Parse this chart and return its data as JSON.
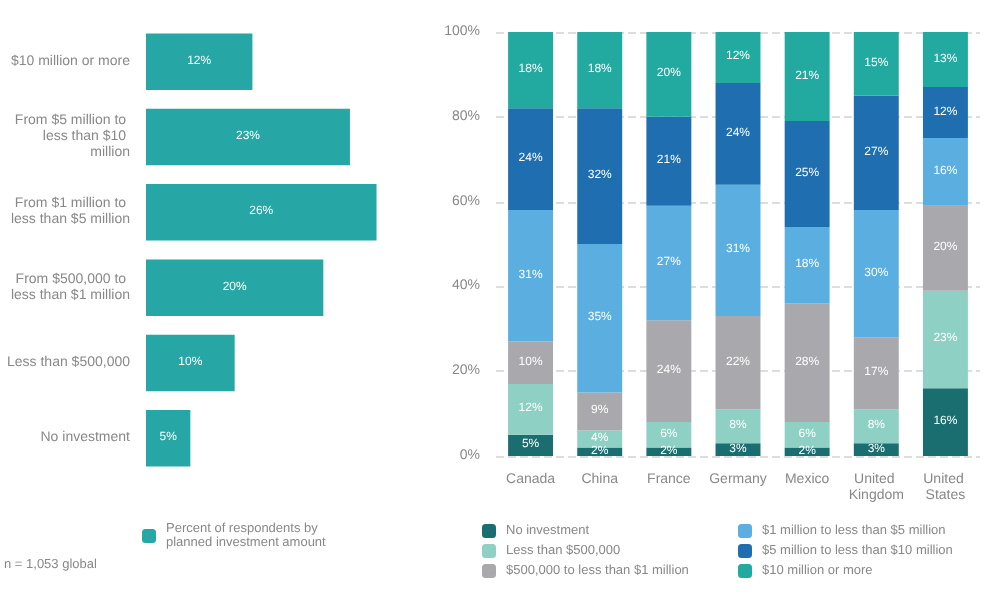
{
  "chart_data": [
    {
      "type": "bar",
      "orientation": "horizontal",
      "categories": [
        "$10 million or more",
        "From $5 million to less than $10 million",
        "From $1 million to less than $5 million",
        "From $500,000 to less than $1 million",
        "Less than $500,000",
        "No investment"
      ],
      "series": [
        {
          "name": "Percent of respondents by planned investment amount",
          "color": "#26a6a4",
          "values": [
            12,
            23,
            26,
            20,
            10,
            5
          ],
          "value_labels": [
            "12%",
            "23%",
            "26%",
            "20%",
            "10%",
            "5%"
          ]
        }
      ],
      "legend": "bottom",
      "annotations": [
        "n = 1,053 global"
      ]
    },
    {
      "type": "bar",
      "stacked": true,
      "categories": [
        "Canada",
        "China",
        "France",
        "Germany",
        "Mexico",
        "United Kingdom",
        "United States"
      ],
      "series": [
        {
          "name": "No investment",
          "color": "#1a6e70",
          "values": [
            5,
            2,
            2,
            3,
            2,
            3,
            16
          ],
          "value_labels": [
            "5%",
            "2%",
            "2%",
            "3%",
            "2%",
            "3%",
            "16%"
          ]
        },
        {
          "name": "Less than $500,000",
          "color": "#8fd0c4",
          "values": [
            12,
            4,
            6,
            8,
            6,
            8,
            23
          ],
          "value_labels": [
            "12%",
            "4%",
            "6%",
            "8%",
            "6%",
            "8%",
            "23%"
          ]
        },
        {
          "name": "$500,000 to less than $1 million",
          "color": "#a9a9ad",
          "values": [
            10,
            9,
            24,
            22,
            28,
            17,
            20
          ],
          "value_labels": [
            "10%",
            "9%",
            "24%",
            "22%",
            "28%",
            "17%",
            "20%"
          ]
        },
        {
          "name": "$1 million to less than $5 million",
          "color": "#5aaee0",
          "values": [
            31,
            35,
            27,
            31,
            18,
            30,
            16
          ],
          "value_labels": [
            "31%",
            "35%",
            "27%",
            "31%",
            "18%",
            "30%",
            "16%"
          ]
        },
        {
          "name": "$5 million to less than $10 million",
          "color": "#1f6fb0",
          "values": [
            24,
            32,
            21,
            24,
            25,
            27,
            12
          ],
          "value_labels": [
            "24%",
            "32%",
            "21%",
            "24%",
            "25%",
            "27%",
            "12%"
          ]
        },
        {
          "name": "$10 million or more",
          "color": "#22aaa0",
          "values": [
            18,
            18,
            20,
            12,
            21,
            15,
            13
          ],
          "value_labels": [
            "18%",
            "18%",
            "20%",
            "12%",
            "21%",
            "15%",
            "13%"
          ]
        }
      ],
      "ylim": [
        0,
        100
      ],
      "yticks": [
        {
          "value": 0,
          "label": "0%"
        },
        {
          "value": 20,
          "label": "20%"
        },
        {
          "value": 40,
          "label": "40%"
        },
        {
          "value": 60,
          "label": "60%"
        },
        {
          "value": 80,
          "label": "80%"
        },
        {
          "value": 100,
          "label": "100%"
        }
      ],
      "grid": "y",
      "legend": "bottom"
    }
  ]
}
